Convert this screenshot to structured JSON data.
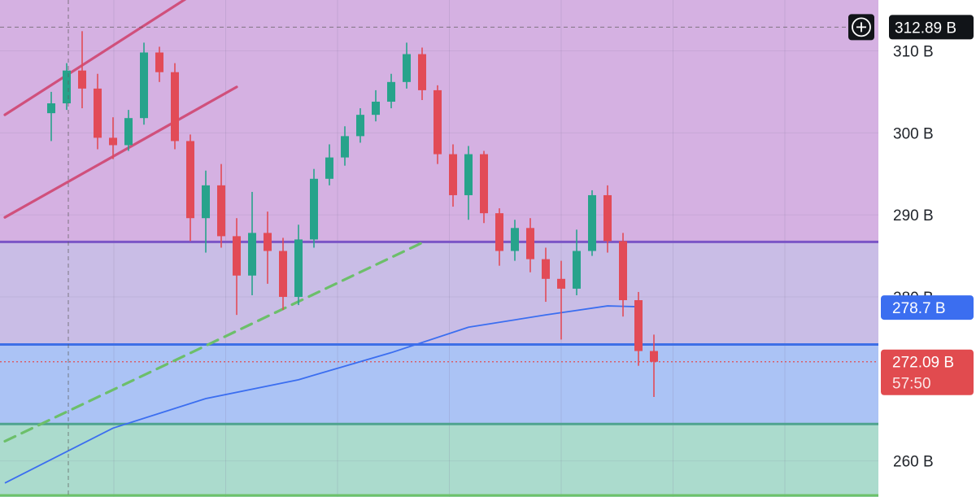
{
  "chart_data": {
    "type": "candlestick",
    "price_axis": {
      "ticks": [
        {
          "value": 310,
          "label": "310 B"
        },
        {
          "value": 300,
          "label": "300 B"
        },
        {
          "value": 290,
          "label": "290 B"
        },
        {
          "value": 280,
          "label": "280 B"
        },
        {
          "value": 260,
          "label": "260 B"
        }
      ],
      "range": [
        255.6,
        316.2
      ]
    },
    "zones": [
      {
        "name": "upper-zone",
        "from": 286.7,
        "to": 316.2,
        "color": "#d5b1e2"
      },
      {
        "name": "middle-zone",
        "from": 274.2,
        "to": 286.7,
        "color": "#c9bde6"
      },
      {
        "name": "lower-zone",
        "from": 264.5,
        "to": 274.2,
        "color": "#abc3f5"
      },
      {
        "name": "bottom-zone",
        "from": 255.6,
        "to": 264.5,
        "color": "#abdbcd"
      }
    ],
    "horizontal_lines": [
      {
        "name": "resistance-line",
        "value": 286.7,
        "color": "#7b55c6"
      },
      {
        "name": "support-line",
        "value": 274.2,
        "color": "#3e6fe6"
      },
      {
        "name": "zone-line",
        "value": 264.5,
        "color": "#4fa38f"
      },
      {
        "name": "floor-line",
        "value": 255.8,
        "color": "#6cc26a"
      }
    ],
    "crosshair": {
      "price": 312.89,
      "time_index": 2
    },
    "trendlines": [
      {
        "name": "channel-upper",
        "from": {
          "t": -3,
          "p": 302.2
        },
        "to": {
          "t": 10,
          "p": 317.9
        },
        "color": "#d0507c",
        "style": "solid"
      },
      {
        "name": "channel-lower",
        "from": {
          "t": -3,
          "p": 289.7
        },
        "to": {
          "t": 12,
          "p": 305.6
        },
        "color": "#d0507c",
        "style": "solid"
      },
      {
        "name": "rising-support",
        "from": {
          "t": -3,
          "p": 262.4
        },
        "to": {
          "t": 24,
          "p": 286.6
        },
        "color": "#6cbf6a",
        "style": "dashed"
      }
    ],
    "moving_average": {
      "color": "#3b6ef0",
      "points": [
        {
          "t": -3,
          "p": 257.3
        },
        {
          "t": 4,
          "p": 264.0
        },
        {
          "t": 10,
          "p": 267.6
        },
        {
          "t": 16,
          "p": 269.9
        },
        {
          "t": 22,
          "p": 273.2
        },
        {
          "t": 27,
          "p": 276.3
        },
        {
          "t": 32,
          "p": 277.8
        },
        {
          "t": 36,
          "p": 278.9
        },
        {
          "t": 38,
          "p": 278.8
        }
      ]
    },
    "candles": [
      {
        "o": 302.4,
        "h": 305.0,
        "l": 299.0,
        "c": 303.6
      },
      {
        "o": 303.6,
        "h": 308.5,
        "l": 302.8,
        "c": 307.6
      },
      {
        "o": 307.6,
        "h": 312.4,
        "l": 303.0,
        "c": 305.4
      },
      {
        "o": 305.4,
        "h": 307.2,
        "l": 298.0,
        "c": 299.4
      },
      {
        "o": 299.4,
        "h": 301.9,
        "l": 296.8,
        "c": 298.5
      },
      {
        "o": 298.5,
        "h": 302.8,
        "l": 297.8,
        "c": 301.8
      },
      {
        "o": 301.8,
        "h": 311.0,
        "l": 301.0,
        "c": 309.8
      },
      {
        "o": 309.8,
        "h": 310.5,
        "l": 306.2,
        "c": 307.4
      },
      {
        "o": 307.4,
        "h": 308.5,
        "l": 298.0,
        "c": 299.0
      },
      {
        "o": 299.0,
        "h": 299.8,
        "l": 286.8,
        "c": 289.6
      },
      {
        "o": 289.6,
        "h": 295.4,
        "l": 285.4,
        "c": 293.6
      },
      {
        "o": 293.6,
        "h": 296.2,
        "l": 286.0,
        "c": 287.4
      },
      {
        "o": 287.4,
        "h": 289.6,
        "l": 277.8,
        "c": 282.6
      },
      {
        "o": 282.6,
        "h": 292.8,
        "l": 280.2,
        "c": 287.8
      },
      {
        "o": 287.8,
        "h": 290.4,
        "l": 281.6,
        "c": 285.6
      },
      {
        "o": 285.6,
        "h": 287.2,
        "l": 278.4,
        "c": 280.0
      },
      {
        "o": 280.0,
        "h": 288.8,
        "l": 279.0,
        "c": 287.0
      },
      {
        "o": 287.0,
        "h": 295.6,
        "l": 286.0,
        "c": 294.4
      },
      {
        "o": 294.4,
        "h": 298.6,
        "l": 293.6,
        "c": 297.0
      },
      {
        "o": 297.0,
        "h": 300.8,
        "l": 296.0,
        "c": 299.6
      },
      {
        "o": 299.6,
        "h": 303.0,
        "l": 298.8,
        "c": 302.2
      },
      {
        "o": 302.2,
        "h": 305.2,
        "l": 301.4,
        "c": 303.8
      },
      {
        "o": 303.8,
        "h": 307.2,
        "l": 303.0,
        "c": 306.2
      },
      {
        "o": 306.2,
        "h": 311.0,
        "l": 305.4,
        "c": 309.6
      },
      {
        "o": 309.6,
        "h": 310.4,
        "l": 304.0,
        "c": 305.2
      },
      {
        "o": 305.2,
        "h": 305.8,
        "l": 296.2,
        "c": 297.4
      },
      {
        "o": 297.4,
        "h": 298.6,
        "l": 291.0,
        "c": 292.4
      },
      {
        "o": 292.4,
        "h": 298.4,
        "l": 289.4,
        "c": 297.4
      },
      {
        "o": 297.4,
        "h": 297.8,
        "l": 289.0,
        "c": 290.2
      },
      {
        "o": 290.2,
        "h": 290.8,
        "l": 283.8,
        "c": 285.6
      },
      {
        "o": 285.6,
        "h": 289.4,
        "l": 284.4,
        "c": 288.4
      },
      {
        "o": 288.4,
        "h": 289.6,
        "l": 283.0,
        "c": 284.6
      },
      {
        "o": 284.6,
        "h": 286.0,
        "l": 279.4,
        "c": 282.2
      },
      {
        "o": 282.2,
        "h": 284.4,
        "l": 274.8,
        "c": 281.0
      },
      {
        "o": 281.0,
        "h": 288.2,
        "l": 280.2,
        "c": 285.6
      },
      {
        "o": 285.6,
        "h": 293.0,
        "l": 285.0,
        "c": 292.4
      },
      {
        "o": 292.4,
        "h": 293.6,
        "l": 285.4,
        "c": 286.8
      },
      {
        "o": 286.8,
        "h": 287.8,
        "l": 277.6,
        "c": 279.6
      },
      {
        "o": 279.6,
        "h": 280.6,
        "l": 271.6,
        "c": 273.4
      },
      {
        "o": 273.4,
        "h": 275.4,
        "l": 267.8,
        "c": 272.09
      }
    ],
    "last_price": {
      "label": "278.7 B",
      "value": 278.7,
      "color": "#3b6ef0"
    },
    "current_price": {
      "label": "272.09 B",
      "value": 272.09,
      "timer": "57:50",
      "color": "#e14b4f"
    },
    "crosshair_label": {
      "label": "312.89 B"
    },
    "bull_color": "#27a38b",
    "bear_color": "#e24b57",
    "grid": true
  }
}
